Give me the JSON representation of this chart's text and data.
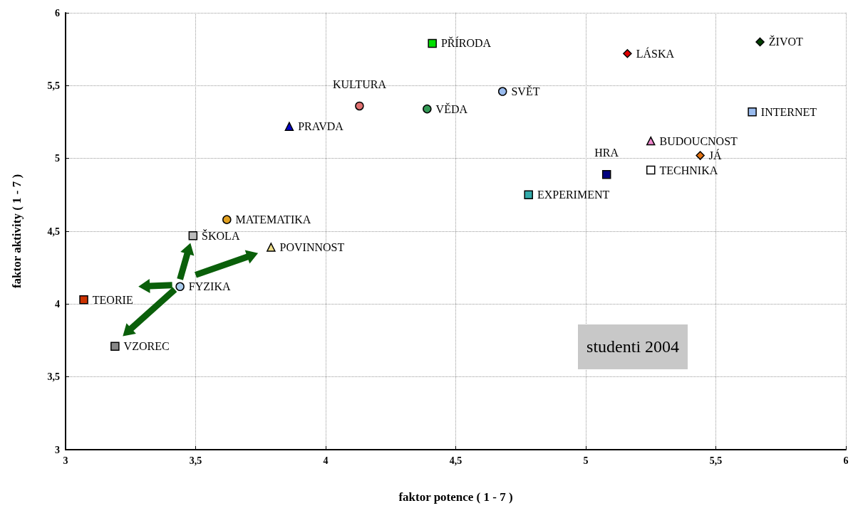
{
  "chart_data": {
    "type": "scatter",
    "xlabel": "faktor potence ( 1 - 7 )",
    "ylabel": "faktor aktivity ( 1 - 7 )",
    "xlim": [
      3,
      6
    ],
    "xticks": [
      3,
      {
        "value": 3.5,
        "label": "3,5"
      },
      4,
      {
        "value": 4.5,
        "label": "4,5"
      },
      5,
      {
        "value": 5.5,
        "label": "5,5"
      },
      6
    ],
    "ylim": [
      3,
      6
    ],
    "yticks": [
      3,
      {
        "value": 3.5,
        "label": "3,5"
      },
      4,
      {
        "value": 4.5,
        "label": "4,5"
      },
      5,
      {
        "value": 5.5,
        "label": "5,5"
      },
      6
    ],
    "grid": true,
    "legend": false,
    "line_style": "dotted",
    "annotations": [
      "studenti 2004"
    ],
    "series": [
      {
        "name": "PŘÍRODA",
        "color": "#00e000",
        "marker": "square",
        "x": [
          4.41
        ],
        "values": [
          5.79
        ]
      },
      {
        "name": "LÁSKA",
        "color": "#e00000",
        "marker": "diamond",
        "x": [
          5.16
        ],
        "values": [
          5.72
        ]
      },
      {
        "name": "ŽIVOT",
        "color": "#004000",
        "marker": "diamond",
        "x": [
          5.67
        ],
        "values": [
          5.8
        ]
      },
      {
        "name": "SVĚT",
        "color": "#99bbee",
        "marker": "circle",
        "x": [
          4.68
        ],
        "values": [
          5.46
        ]
      },
      {
        "name": "KULTURA",
        "color": "#e07070",
        "marker": "circle",
        "x": [
          4.13
        ],
        "values": [
          5.36
        ]
      },
      {
        "name": "VĚDA",
        "color": "#339955",
        "marker": "circle",
        "x": [
          4.39
        ],
        "values": [
          5.34
        ]
      },
      {
        "name": "PRAVDA",
        "color": "#0000cc",
        "marker": "triangle",
        "x": [
          3.86
        ],
        "values": [
          5.22
        ]
      },
      {
        "name": "INTERNET",
        "color": "#99bbee",
        "marker": "square",
        "x": [
          5.64
        ],
        "values": [
          5.32
        ]
      },
      {
        "name": "BUDOUCNOST",
        "color": "#ee88cc",
        "marker": "triangle",
        "x": [
          5.25
        ],
        "values": [
          5.12
        ]
      },
      {
        "name": "JÁ",
        "color": "#e07010",
        "marker": "diamond",
        "x": [
          5.44
        ],
        "values": [
          5.02
        ]
      },
      {
        "name": "HRA",
        "color": "#000080",
        "marker": "square",
        "x": [
          5.08
        ],
        "values": [
          4.89
        ]
      },
      {
        "name": "TECHNIKA",
        "color": "#ffffff",
        "marker": "square",
        "x": [
          5.25
        ],
        "values": [
          4.92
        ]
      },
      {
        "name": "EXPERIMENT",
        "color": "#33aaaa",
        "marker": "square",
        "x": [
          4.78
        ],
        "values": [
          4.75
        ]
      },
      {
        "name": "MATEMATIKA",
        "color": "#e0a020",
        "marker": "circle",
        "x": [
          3.62
        ],
        "values": [
          4.58
        ]
      },
      {
        "name": "ŠKOLA",
        "color": "#bbbbbb",
        "marker": "square",
        "x": [
          3.49
        ],
        "values": [
          4.47
        ]
      },
      {
        "name": "POVINNOST",
        "color": "#eedd88",
        "marker": "triangle",
        "x": [
          3.79
        ],
        "values": [
          4.39
        ]
      },
      {
        "name": "FYZIKA",
        "color": "#aaccee",
        "marker": "circle",
        "x": [
          3.44
        ],
        "values": [
          4.12
        ]
      },
      {
        "name": "TEORIE",
        "color": "#cc3300",
        "marker": "square",
        "x": [
          3.07
        ],
        "values": [
          4.03
        ]
      },
      {
        "name": "VZOREC",
        "color": "#888888",
        "marker": "square",
        "x": [
          3.19
        ],
        "values": [
          3.71
        ]
      }
    ]
  }
}
